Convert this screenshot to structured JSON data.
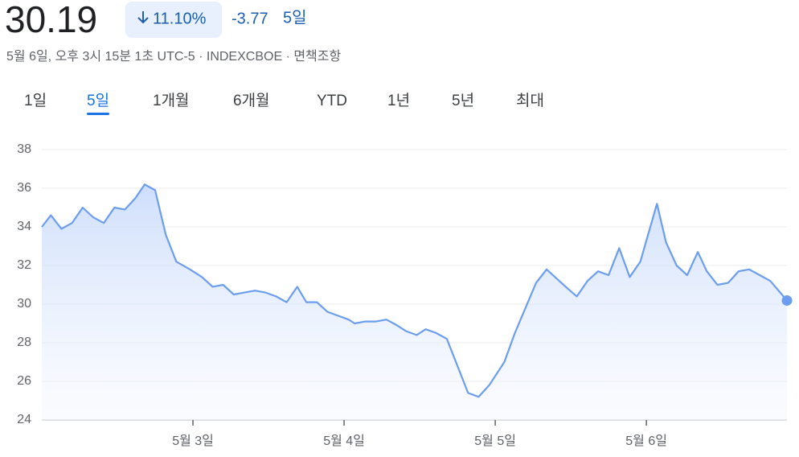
{
  "header": {
    "price": 30.19,
    "change_percent": "11.10%",
    "change": -3.77,
    "period": "5일",
    "subtitle": "5월 6일, 오후 3시 15분 1초 UTC-5 · INDEXCBOE · 면책조항"
  },
  "tabs": {
    "items": [
      "1일",
      "5일",
      "1개월",
      "6개월",
      "YTD",
      "1년",
      "5년",
      "최대"
    ],
    "active": 1
  },
  "chart_data": {
    "type": "area",
    "color": "#6b9ef0",
    "grid": true,
    "x": [
      2.0,
      2.06,
      2.13,
      2.2,
      2.27,
      2.34,
      2.41,
      2.48,
      2.55,
      2.62,
      2.68,
      2.75,
      2.82,
      2.89,
      2.98,
      3.06,
      3.13,
      3.2,
      3.27,
      3.34,
      3.41,
      3.48,
      3.55,
      3.62,
      3.69,
      3.75,
      3.82,
      3.89,
      3.96,
      4.03,
      4.07,
      4.14,
      4.21,
      4.28,
      4.35,
      4.41,
      4.48,
      4.54,
      4.61,
      4.68,
      4.82,
      4.89,
      4.96,
      5.06,
      5.13,
      5.2,
      5.27,
      5.34,
      5.41,
      5.48,
      5.54,
      5.61,
      5.68,
      5.75,
      5.82,
      5.89,
      5.96,
      6.07,
      6.13,
      6.2,
      6.27,
      6.34,
      6.4,
      6.47,
      6.54,
      6.61,
      6.68,
      6.75,
      6.82,
      6.93
    ],
    "values": [
      34.0,
      34.6,
      33.9,
      34.2,
      35.0,
      34.5,
      34.2,
      35.0,
      34.9,
      35.5,
      36.2,
      35.9,
      33.6,
      32.2,
      31.8,
      31.4,
      30.9,
      31.0,
      30.5,
      30.6,
      30.7,
      30.6,
      30.4,
      30.1,
      30.9,
      30.1,
      30.1,
      29.6,
      29.4,
      29.2,
      29.0,
      29.1,
      29.1,
      29.2,
      28.9,
      28.6,
      28.4,
      28.7,
      28.5,
      28.2,
      25.4,
      25.2,
      25.8,
      27.0,
      28.5,
      29.8,
      31.1,
      31.8,
      31.3,
      30.8,
      30.4,
      31.2,
      31.7,
      31.5,
      32.9,
      31.4,
      32.2,
      35.2,
      33.2,
      32.0,
      31.5,
      32.7,
      31.7,
      31.0,
      31.1,
      31.7,
      31.8,
      31.5,
      31.2,
      30.19
    ],
    "xlim": [
      2.0,
      6.93
    ],
    "xticks": [
      {
        "value": 3,
        "label": "5월 3일"
      },
      {
        "value": 4,
        "label": "5월 4일"
      },
      {
        "value": 5,
        "label": "5월 5일"
      },
      {
        "value": 6,
        "label": "5월 6일"
      }
    ],
    "ylim": [
      24,
      38
    ],
    "yticks": [
      24,
      26,
      28,
      30,
      32,
      34,
      36,
      38
    ]
  }
}
